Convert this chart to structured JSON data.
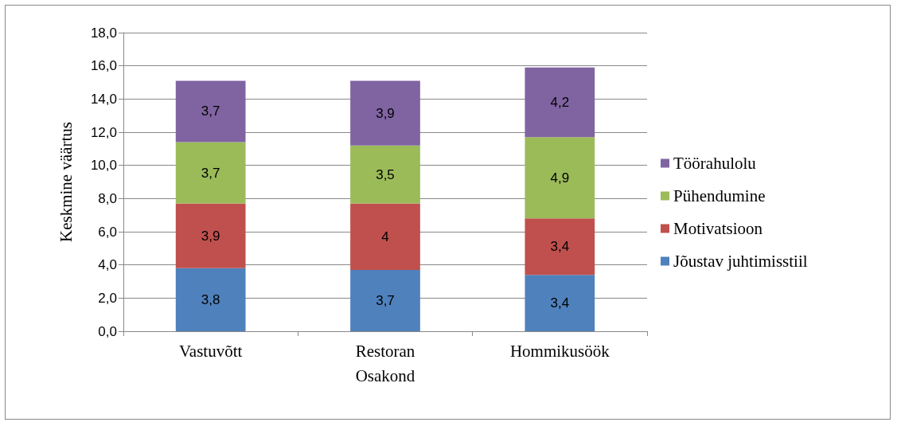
{
  "chart_data": {
    "type": "bar",
    "stacked": true,
    "xlabel": "Osakond",
    "ylabel": "Keskmine väärtus",
    "categories": [
      "Vastuvõtt",
      "Restoran",
      "Hommikusöök"
    ],
    "series": [
      {
        "name": "Jõustav juhtimisstiil",
        "color": "#4f81bd",
        "values": [
          3.8,
          3.7,
          3.4
        ],
        "value_labels": [
          "3,8",
          "3,7",
          "3,4"
        ]
      },
      {
        "name": "Motivatsioon",
        "color": "#c0504d",
        "values": [
          3.9,
          4,
          3.4
        ],
        "value_labels": [
          "3,9",
          "4",
          "3,4"
        ]
      },
      {
        "name": "Pühendumine",
        "color": "#9bbb59",
        "values": [
          3.7,
          3.5,
          4.9
        ],
        "value_labels": [
          "3,7",
          "3,5",
          "4,9"
        ]
      },
      {
        "name": "Töörahulolu",
        "color": "#8064a2",
        "values": [
          3.7,
          3.9,
          4.2
        ],
        "value_labels": [
          "3,7",
          "3,9",
          "4,2"
        ]
      }
    ],
    "ylim": [
      0,
      18
    ],
    "yticks": [
      {
        "value": 0,
        "label": "0,0"
      },
      {
        "value": 2,
        "label": "2,0"
      },
      {
        "value": 4,
        "label": "4,0"
      },
      {
        "value": 6,
        "label": "6,0"
      },
      {
        "value": 8,
        "label": "8,0"
      },
      {
        "value": 10,
        "label": "10,0"
      },
      {
        "value": 12,
        "label": "12,0"
      },
      {
        "value": 14,
        "label": "14,0"
      },
      {
        "value": 16,
        "label": "16,0"
      },
      {
        "value": 18,
        "label": "18,0"
      }
    ],
    "grid": "y",
    "legend": "right"
  }
}
